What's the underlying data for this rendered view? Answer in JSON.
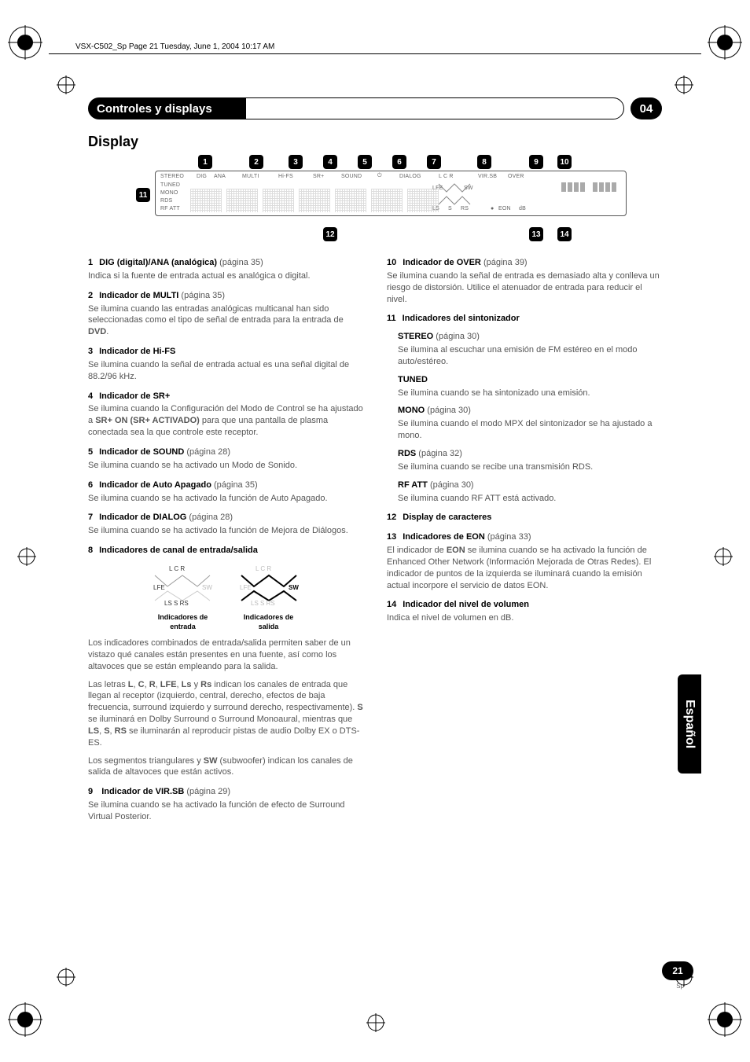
{
  "runner": "VSX-C502_Sp  Page 21  Tuesday, June 1, 2004  10:17 AM",
  "chapter_badge": "04",
  "header_title": "Controles y displays",
  "section_title": "Display",
  "spine_tab": "Español",
  "page_number": "21",
  "page_sub": "Sp",
  "vfd": {
    "top": [
      "STEREO",
      "DIG",
      "ANA",
      "MULTI",
      "Hi-FS",
      "SR+",
      "SOUND",
      "",
      "DIALOG",
      "L  C  R",
      "VIR.SB",
      "OVER"
    ],
    "left": [
      "TUNED",
      "MONO",
      "RDS",
      "RF ATT"
    ],
    "right_small": [
      "LFE",
      "SW",
      "LS",
      "S",
      "RS",
      "EON",
      "dB"
    ]
  },
  "callouts": [
    "1",
    "2",
    "3",
    "4",
    "5",
    "6",
    "7",
    "8",
    "9",
    "10",
    "11",
    "12",
    "13",
    "14"
  ],
  "left_col": [
    {
      "num": "1",
      "name": "DIG (digital)/ANA (analógica)",
      "ref": " (página 35)",
      "desc": "Indica si la fuente de entrada actual es analógica o digital."
    },
    {
      "num": "2",
      "name": "Indicador de MULTI ",
      "ref": " (página 35)",
      "desc": "Se ilumina cuando las entradas analógicas multicanal han sido seleccionadas como el tipo de señal de entrada para la entrada de <b>DVD</b>."
    },
    {
      "num": "3",
      "name": "Indicador de Hi-FS",
      "ref": "",
      "desc": "Se ilumina cuando la señal de entrada actual es una señal digital de 88.2/96 kHz."
    },
    {
      "num": "4",
      "name": "Indicador de SR+",
      "ref": "",
      "desc": "Se ilumina cuando la Configuración del Modo de Control se ha ajustado a <b>SR+ ON (SR+ ACTIVADO)</b> para que una pantalla de plasma conectada sea la que controle este receptor."
    },
    {
      "num": "5",
      "name": "Indicador de SOUND",
      "ref": " (página 28)",
      "desc": "Se ilumina cuando se ha activado un Modo de Sonido."
    },
    {
      "num": "6",
      "name": "Indicador de Auto Apagado",
      "ref": " (página 35)",
      "desc": "Se ilumina cuando se ha activado la función de Auto Apagado."
    },
    {
      "num": "7",
      "name": "Indicador de DIALOG",
      "ref": " (página 28)",
      "desc": "Se ilumina cuando se ha activado la función de Mejora de Diálogos."
    },
    {
      "num": "8",
      "name": "Indicadores de canal de entrada/salida",
      "ref": "",
      "desc": ""
    }
  ],
  "io_captions": {
    "in": "Indicadores de entrada",
    "out": "Indicadores de salida"
  },
  "left_after_io": [
    "Los indicadores combinados de entrada/salida permiten saber de un vistazo qué canales están presentes en una fuente, así como los altavoces que se están empleando para la salida.",
    "Las letras <b>L</b>, <b>C</b>, <b>R</b>, <b>LFE</b>, <b>Ls</b> y <b>Rs</b> indican los canales de entrada que llegan al receptor (izquierdo, central, derecho, efectos de baja frecuencia, surround izquierdo y surround derecho, respectivamente). <b>S</b> se iluminará en Dolby Surround o Surround Monoaural, mientras que <b>LS</b>, <b>S</b>, <b>RS</b> se iluminarán al reproducir pistas de audio Dolby EX o DTS-ES.",
    "Los segmentos triangulares y <b>SW</b> (subwoofer) indican los canales de salida de altavoces que están activos."
  ],
  "left_item9": {
    "num": "9",
    "name": "Indicador de VIR.SB",
    "ref": " (página 29)",
    "desc": "Se ilumina cuando se ha activado la función de efecto de Surround Virtual Posterior."
  },
  "right_col": [
    {
      "num": "10",
      "name": "Indicador de OVER",
      "ref": " (página 39)",
      "desc": "Se ilumina cuando la señal de entrada es demasiado alta y conlleva un riesgo de distorsión. Utilice el atenuador de entrada para reducir el nivel."
    },
    {
      "num": "11",
      "name": "Indicadores del sintonizador",
      "ref": "",
      "desc": ""
    }
  ],
  "tuner_subs": [
    {
      "name": "STEREO",
      "ref": " (página 30)",
      "desc": "Se ilumina al escuchar una emisión de FM estéreo en el modo auto/estéreo."
    },
    {
      "name": "TUNED",
      "ref": "",
      "desc": "Se ilumina cuando se ha sintonizado una emisión."
    },
    {
      "name": "MONO",
      "ref": " (página 30)",
      "desc": "Se ilumina cuando el modo MPX del sintonizador se ha ajustado a mono."
    },
    {
      "name": "RDS",
      "ref": " (página 32)",
      "desc": "Se ilumina cuando se recibe una transmisión RDS."
    },
    {
      "name": "RF ATT",
      "ref": " (página 30)",
      "desc": "Se ilumina cuando RF ATT está activado."
    }
  ],
  "right_rest": [
    {
      "num": "12",
      "name": "Display de caracteres",
      "ref": "",
      "desc": ""
    },
    {
      "num": "13",
      "name": "Indicadores de EON",
      "ref": " (página 33)",
      "desc": "El indicador de <b>EON</b> se ilumina cuando se ha activado la función de Enhanced Other Network (Información Mejorada de Otras Redes). El indicador de puntos de la izquierda se iluminará cuando la emisión actual incorpore el servicio de datos EON."
    },
    {
      "num": "14",
      "name": "Indicador del nivel de volumen",
      "ref": "",
      "desc": "Indica el nivel de volumen en dB."
    }
  ]
}
